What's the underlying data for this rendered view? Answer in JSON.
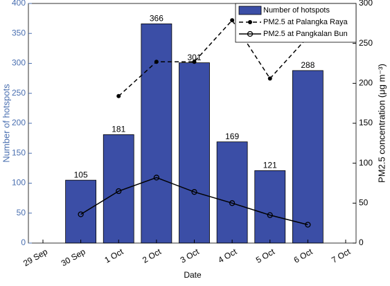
{
  "chart_data": {
    "type": "bar",
    "xlabel": "Date",
    "ylabel": "Number of hotspots",
    "y2label": "PM2.5 concentration (μg m⁻³)",
    "categories": [
      "29 Sep",
      "30 Sep",
      "1 Oct",
      "2 Oct",
      "3 Oct",
      "4 Oct",
      "5 Oct",
      "6 Oct",
      "7 Oct"
    ],
    "series": [
      {
        "name": "Number of hotspots",
        "type": "bar",
        "color": "#3b4ea6",
        "values": [
          null,
          105,
          181,
          366,
          301,
          169,
          121,
          288,
          null
        ]
      },
      {
        "name": "PM2.5 at Palangka Raya",
        "type": "line",
        "axis": "y2",
        "color": "#000000",
        "dash": true,
        "marker": "dot",
        "values": [
          null,
          null,
          184,
          227,
          227,
          279,
          206,
          258,
          null
        ]
      },
      {
        "name": "PM2.5 at Pangkalan Bun",
        "type": "line",
        "axis": "y2",
        "color": "#000000",
        "dash": false,
        "marker": "circle",
        "values": [
          null,
          36,
          65,
          82,
          64,
          50,
          35,
          23,
          null
        ]
      }
    ],
    "ylim": [
      0,
      400
    ],
    "yticks": [
      0,
      50,
      100,
      150,
      200,
      250,
      300,
      350,
      400
    ],
    "y2lim": [
      0,
      300
    ],
    "y2ticks": [
      0,
      50,
      100,
      150,
      200,
      250,
      300
    ],
    "legend": "upper right"
  }
}
